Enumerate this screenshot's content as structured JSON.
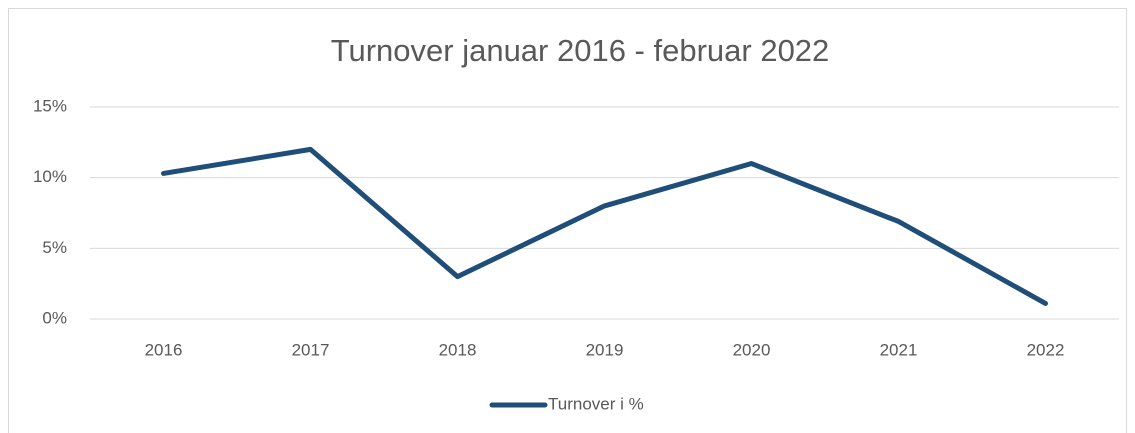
{
  "chart_data": {
    "type": "line",
    "title": "Turnover januar 2016 - februar 2022",
    "categories": [
      "2016",
      "2017",
      "2018",
      "2019",
      "2020",
      "2021",
      "2022"
    ],
    "series": [
      {
        "name": "Turnover i %",
        "color": "#1f4e79",
        "values": [
          10.3,
          12.0,
          3.0,
          8.0,
          11.0,
          6.9,
          1.1
        ]
      }
    ],
    "ylim": [
      0,
      15
    ],
    "yticks": [
      {
        "value": 0,
        "label": "0%"
      },
      {
        "value": 5,
        "label": "5%"
      },
      {
        "value": 10,
        "label": "10%"
      },
      {
        "value": 15,
        "label": "15%"
      }
    ],
    "grid": true,
    "legend": "bottom"
  }
}
